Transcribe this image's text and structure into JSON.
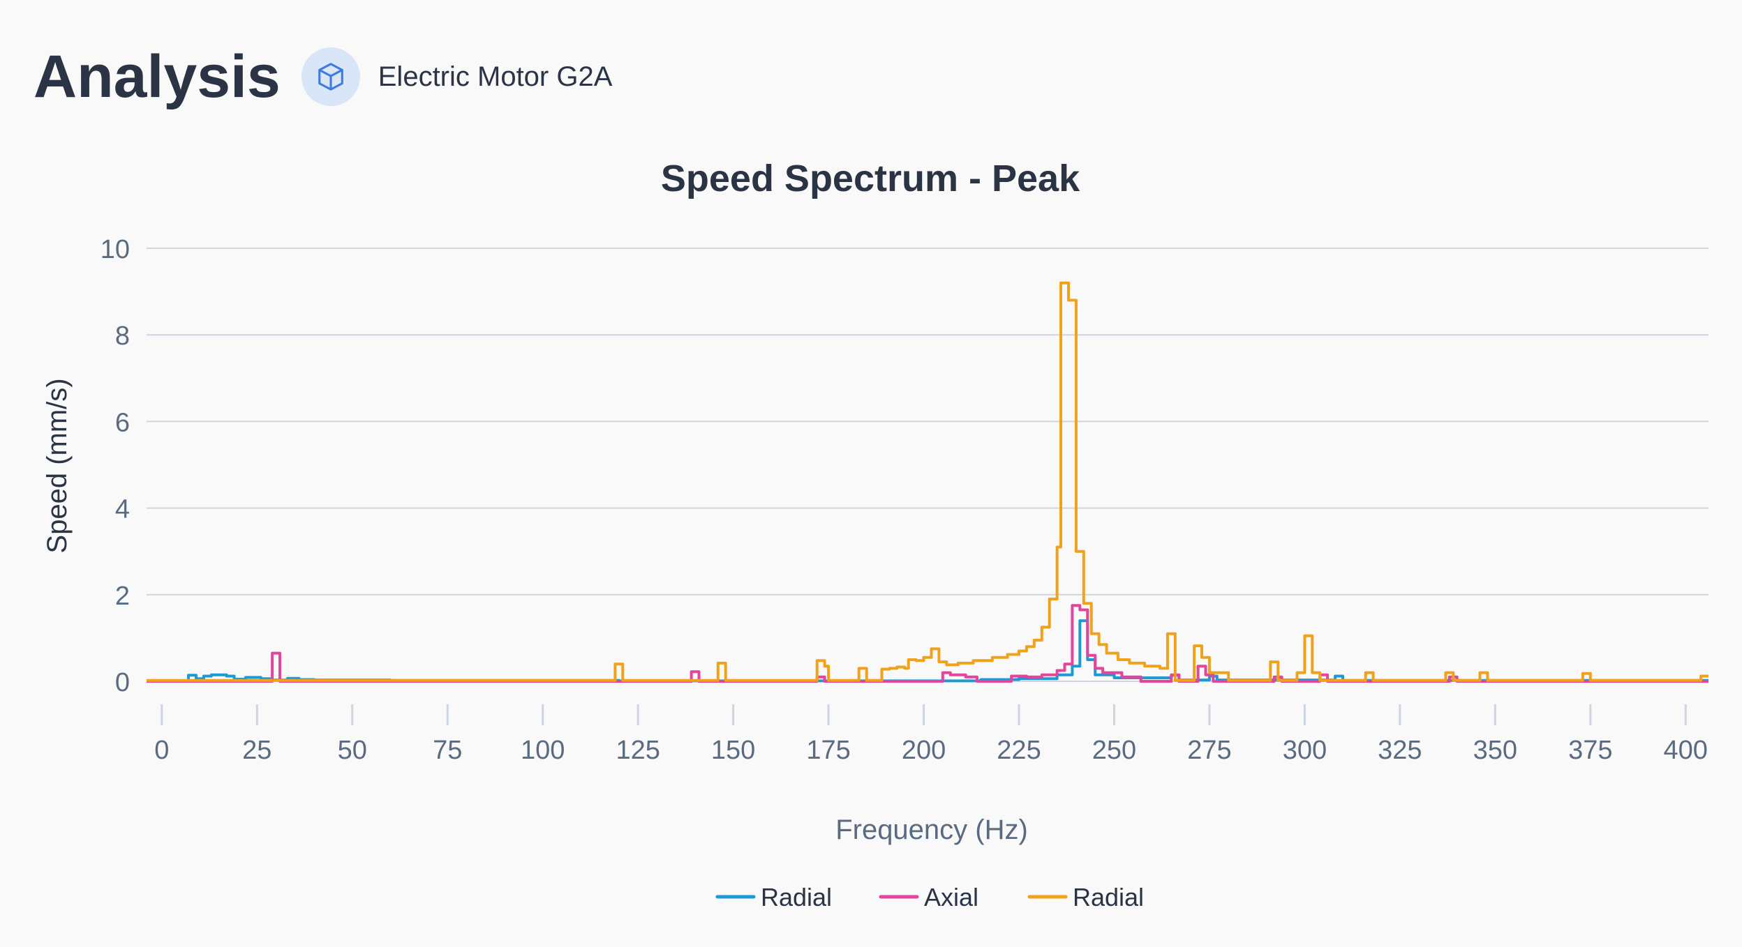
{
  "header": {
    "title": "Analysis",
    "badge_icon": "cube-icon",
    "device_name": "Electric Motor G2A"
  },
  "colors": {
    "radial_1": "#1d9ad6",
    "axial": "#e2459b",
    "radial_2": "#f0a21a",
    "grid": "#cdd5e0",
    "text": "#5a6b80",
    "title": "#2b3444",
    "badge_bg": "#d9e6f8",
    "badge_icon": "#3d7be0"
  },
  "chart_data": {
    "type": "line",
    "title": "Speed Spectrum - Peak",
    "xlabel": "Frequency (Hz)",
    "ylabel": "Speed (mm/s)",
    "xlim": [
      -4,
      406
    ],
    "ylim": [
      0,
      10
    ],
    "x_ticks": [
      0,
      25,
      50,
      75,
      100,
      125,
      150,
      175,
      200,
      225,
      250,
      275,
      300,
      325,
      350,
      375,
      400
    ],
    "y_ticks": [
      0,
      2,
      4,
      6,
      8,
      10
    ],
    "grid": true,
    "legend_position": "bottom-center",
    "series": [
      {
        "name": "Radial",
        "color": "#1d9ad6",
        "points": [
          [
            -4,
            0
          ],
          [
            7,
            0
          ],
          [
            7,
            0.14
          ],
          [
            9,
            0.14
          ],
          [
            9,
            0.06
          ],
          [
            11,
            0.06
          ],
          [
            11,
            0.12
          ],
          [
            13,
            0.12
          ],
          [
            13,
            0.15
          ],
          [
            17,
            0.15
          ],
          [
            17,
            0.12
          ],
          [
            19,
            0.12
          ],
          [
            19,
            0.05
          ],
          [
            22,
            0.05
          ],
          [
            22,
            0.09
          ],
          [
            26,
            0.09
          ],
          [
            26,
            0.06
          ],
          [
            29,
            0.06
          ],
          [
            29,
            0.03
          ],
          [
            33,
            0.03
          ],
          [
            33,
            0.07
          ],
          [
            36,
            0.07
          ],
          [
            36,
            0.04
          ],
          [
            40,
            0.04
          ],
          [
            40,
            0.03
          ],
          [
            60,
            0.03
          ],
          [
            60,
            0.02
          ],
          [
            120,
            0.02
          ],
          [
            120,
            0.01
          ],
          [
            215,
            0.01
          ],
          [
            215,
            0.04
          ],
          [
            225,
            0.04
          ],
          [
            225,
            0.06
          ],
          [
            235,
            0.06
          ],
          [
            235,
            0.15
          ],
          [
            239,
            0.15
          ],
          [
            239,
            0.35
          ],
          [
            241,
            0.35
          ],
          [
            241,
            1.4
          ],
          [
            243,
            1.4
          ],
          [
            243,
            0.5
          ],
          [
            245,
            0.5
          ],
          [
            245,
            0.15
          ],
          [
            250,
            0.15
          ],
          [
            250,
            0.08
          ],
          [
            265,
            0.08
          ],
          [
            265,
            0.14
          ],
          [
            267,
            0.14
          ],
          [
            267,
            0.03
          ],
          [
            275,
            0.03
          ],
          [
            275,
            0.12
          ],
          [
            277,
            0.12
          ],
          [
            277,
            0.03
          ],
          [
            308,
            0.03
          ],
          [
            308,
            0.12
          ],
          [
            310,
            0.12
          ],
          [
            310,
            0.02
          ],
          [
            406,
            0.02
          ]
        ]
      },
      {
        "name": "Axial",
        "color": "#e2459b",
        "points": [
          [
            -4,
            0
          ],
          [
            29,
            0
          ],
          [
            29,
            0.65
          ],
          [
            31,
            0.65
          ],
          [
            31,
            0
          ],
          [
            128,
            0
          ],
          [
            128,
            0
          ],
          [
            139,
            0
          ],
          [
            139,
            0.22
          ],
          [
            141,
            0.22
          ],
          [
            141,
            0
          ],
          [
            172,
            0
          ],
          [
            172,
            0.1
          ],
          [
            174,
            0.1
          ],
          [
            174,
            0
          ],
          [
            205,
            0
          ],
          [
            205,
            0.2
          ],
          [
            207,
            0.2
          ],
          [
            207,
            0.15
          ],
          [
            211,
            0.15
          ],
          [
            211,
            0.1
          ],
          [
            214,
            0.1
          ],
          [
            214,
            0
          ],
          [
            223,
            0
          ],
          [
            223,
            0.12
          ],
          [
            227,
            0.12
          ],
          [
            227,
            0.1
          ],
          [
            231,
            0.1
          ],
          [
            231,
            0.15
          ],
          [
            235,
            0.15
          ],
          [
            235,
            0.25
          ],
          [
            237,
            0.25
          ],
          [
            237,
            0.4
          ],
          [
            239,
            0.4
          ],
          [
            239,
            1.75
          ],
          [
            241,
            1.75
          ],
          [
            241,
            1.65
          ],
          [
            243,
            1.65
          ],
          [
            243,
            0.6
          ],
          [
            245,
            0.6
          ],
          [
            245,
            0.3
          ],
          [
            247,
            0.3
          ],
          [
            247,
            0.2
          ],
          [
            252,
            0.2
          ],
          [
            252,
            0.1
          ],
          [
            257,
            0.1
          ],
          [
            257,
            0
          ],
          [
            265,
            0
          ],
          [
            265,
            0.15
          ],
          [
            267,
            0.15
          ],
          [
            267,
            0
          ],
          [
            272,
            0
          ],
          [
            272,
            0.35
          ],
          [
            274,
            0.35
          ],
          [
            274,
            0.15
          ],
          [
            276,
            0.15
          ],
          [
            276,
            0
          ],
          [
            283,
            0
          ],
          [
            283,
            0
          ],
          [
            292,
            0
          ],
          [
            292,
            0.1
          ],
          [
            294,
            0.1
          ],
          [
            294,
            0
          ],
          [
            304,
            0
          ],
          [
            304,
            0.15
          ],
          [
            306,
            0.15
          ],
          [
            306,
            0
          ],
          [
            338,
            0
          ],
          [
            338,
            0.1
          ],
          [
            340,
            0.1
          ],
          [
            340,
            0
          ],
          [
            406,
            0
          ]
        ]
      },
      {
        "name": "Radial",
        "color": "#f0a21a",
        "points": [
          [
            -4,
            0.02
          ],
          [
            119,
            0.02
          ],
          [
            119,
            0.4
          ],
          [
            121,
            0.4
          ],
          [
            121,
            0.02
          ],
          [
            146,
            0.02
          ],
          [
            146,
            0.42
          ],
          [
            148,
            0.42
          ],
          [
            148,
            0.02
          ],
          [
            172,
            0.02
          ],
          [
            172,
            0.48
          ],
          [
            174,
            0.48
          ],
          [
            174,
            0.35
          ],
          [
            175,
            0.35
          ],
          [
            175,
            0.02
          ],
          [
            183,
            0.02
          ],
          [
            183,
            0.3
          ],
          [
            185,
            0.3
          ],
          [
            185,
            0.02
          ],
          [
            189,
            0.02
          ],
          [
            189,
            0.28
          ],
          [
            191,
            0.28
          ],
          [
            191,
            0.3
          ],
          [
            193,
            0.3
          ],
          [
            193,
            0.33
          ],
          [
            195,
            0.33
          ],
          [
            195,
            0.3
          ],
          [
            196,
            0.3
          ],
          [
            196,
            0.5
          ],
          [
            198,
            0.5
          ],
          [
            198,
            0.48
          ],
          [
            200,
            0.48
          ],
          [
            200,
            0.55
          ],
          [
            202,
            0.55
          ],
          [
            202,
            0.75
          ],
          [
            204,
            0.75
          ],
          [
            204,
            0.45
          ],
          [
            206,
            0.45
          ],
          [
            206,
            0.38
          ],
          [
            209,
            0.38
          ],
          [
            209,
            0.42
          ],
          [
            213,
            0.42
          ],
          [
            213,
            0.48
          ],
          [
            218,
            0.48
          ],
          [
            218,
            0.55
          ],
          [
            222,
            0.55
          ],
          [
            222,
            0.62
          ],
          [
            225,
            0.62
          ],
          [
            225,
            0.7
          ],
          [
            227,
            0.7
          ],
          [
            227,
            0.8
          ],
          [
            229,
            0.8
          ],
          [
            229,
            0.95
          ],
          [
            231,
            0.95
          ],
          [
            231,
            1.25
          ],
          [
            233,
            1.25
          ],
          [
            233,
            1.9
          ],
          [
            235,
            1.9
          ],
          [
            235,
            3.1
          ],
          [
            236,
            3.1
          ],
          [
            236,
            9.2
          ],
          [
            238,
            9.2
          ],
          [
            238,
            8.8
          ],
          [
            240,
            8.8
          ],
          [
            240,
            3.0
          ],
          [
            242,
            3.0
          ],
          [
            242,
            1.8
          ],
          [
            244,
            1.8
          ],
          [
            244,
            1.1
          ],
          [
            246,
            1.1
          ],
          [
            246,
            0.85
          ],
          [
            248,
            0.85
          ],
          [
            248,
            0.65
          ],
          [
            251,
            0.65
          ],
          [
            251,
            0.5
          ],
          [
            254,
            0.5
          ],
          [
            254,
            0.42
          ],
          [
            258,
            0.42
          ],
          [
            258,
            0.35
          ],
          [
            262,
            0.35
          ],
          [
            262,
            0.3
          ],
          [
            264,
            0.3
          ],
          [
            264,
            1.1
          ],
          [
            266,
            1.1
          ],
          [
            266,
            0.02
          ],
          [
            271,
            0.02
          ],
          [
            271,
            0.82
          ],
          [
            273,
            0.82
          ],
          [
            273,
            0.55
          ],
          [
            275,
            0.55
          ],
          [
            275,
            0.2
          ],
          [
            280,
            0.2
          ],
          [
            280,
            0.02
          ],
          [
            291,
            0.02
          ],
          [
            291,
            0.45
          ],
          [
            293,
            0.45
          ],
          [
            293,
            0.02
          ],
          [
            298,
            0.02
          ],
          [
            298,
            0.2
          ],
          [
            300,
            0.2
          ],
          [
            300,
            1.05
          ],
          [
            302,
            1.05
          ],
          [
            302,
            0.2
          ],
          [
            304,
            0.2
          ],
          [
            304,
            0.02
          ],
          [
            316,
            0.02
          ],
          [
            316,
            0.2
          ],
          [
            318,
            0.2
          ],
          [
            318,
            0.02
          ],
          [
            337,
            0.02
          ],
          [
            337,
            0.2
          ],
          [
            339,
            0.2
          ],
          [
            339,
            0.02
          ],
          [
            346,
            0.02
          ],
          [
            346,
            0.2
          ],
          [
            348,
            0.2
          ],
          [
            348,
            0.02
          ],
          [
            373,
            0.02
          ],
          [
            373,
            0.18
          ],
          [
            375,
            0.18
          ],
          [
            375,
            0.02
          ],
          [
            404,
            0.02
          ],
          [
            404,
            0.12
          ],
          [
            406,
            0.12
          ]
        ]
      }
    ]
  }
}
